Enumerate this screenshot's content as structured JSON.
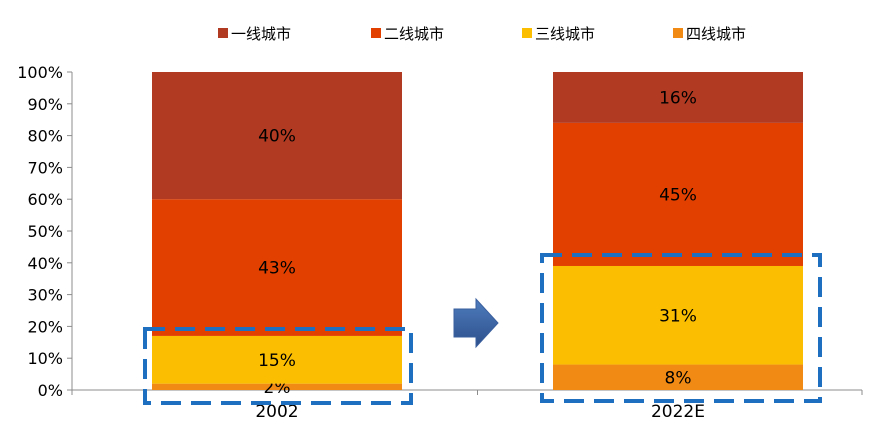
{
  "chart_data": {
    "type": "bar",
    "stacked": true,
    "categories": [
      "2002",
      "2022E"
    ],
    "series": [
      {
        "name": "四线城市",
        "color": "#F08A14",
        "values": [
          2,
          8
        ],
        "labels": [
          "2%",
          "8%"
        ]
      },
      {
        "name": "三线城市",
        "color": "#FBBE00",
        "values": [
          15,
          31
        ],
        "labels": [
          "15%",
          "31%"
        ]
      },
      {
        "name": "二线城市",
        "color": "#E24000",
        "values": [
          43,
          45
        ],
        "labels": [
          "43%",
          "45%"
        ]
      },
      {
        "name": "一线城市",
        "color": "#B03A22",
        "values": [
          40,
          16
        ],
        "labels": [
          "40%",
          "16%"
        ]
      }
    ],
    "legend_order": [
      "一线城市",
      "二线城市",
      "三线城市",
      "四线城市"
    ],
    "legend_position": "top",
    "ylim": [
      0,
      100
    ],
    "yticks": [
      "0%",
      "10%",
      "20%",
      "30%",
      "40%",
      "50%",
      "60%",
      "70%",
      "80%",
      "90%",
      "100%"
    ],
    "grid": false,
    "annotations": {
      "arrow": "right-arrow",
      "highlight_boxes": "dashed boxes around lower tiers (三线城市 + 四线城市) of each bar",
      "highlight_color": "#1F6FC0"
    }
  }
}
